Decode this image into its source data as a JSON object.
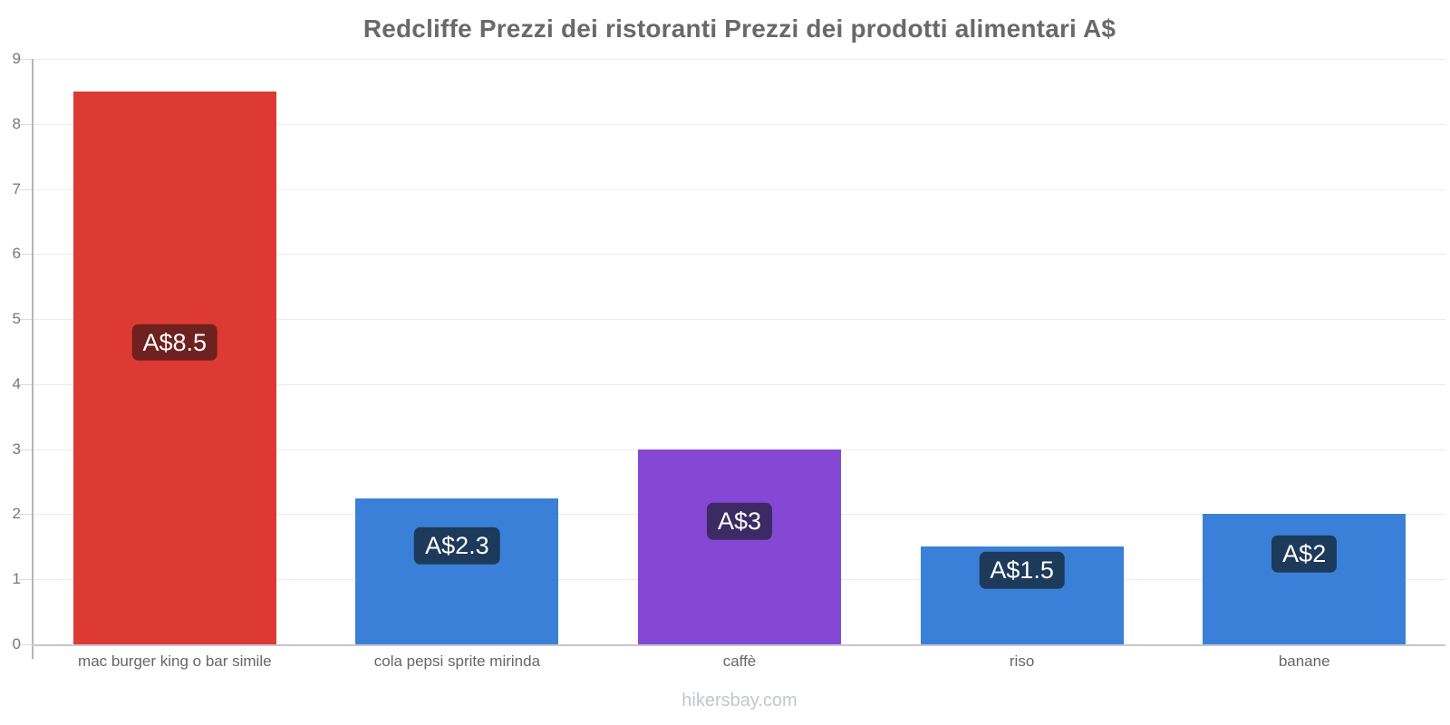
{
  "page": {
    "background": "#ffffff"
  },
  "chart_data": {
    "type": "bar",
    "title": "Redcliffe Prezzi dei ristoranti Prezzi dei prodotti alimentari A$",
    "currency": "A$",
    "categories": [
      "mac burger king o bar simile",
      "cola pepsi sprite mirinda",
      "caffè",
      "riso",
      "banane"
    ],
    "values": [
      8.5,
      2.25,
      3,
      1.5,
      2
    ],
    "value_labels": [
      "A$8.5",
      "A$2.3",
      "A$3",
      "A$1.5",
      "A$2"
    ],
    "bar_colors": [
      "#dc3a32",
      "#3a80d8",
      "#8448d4",
      "#3a80d8",
      "#3a80d8"
    ],
    "badge_colors": [
      "#6e211e",
      "#1d3a5a",
      "#3b2a64",
      "#1d3a5a",
      "#1d3a5a"
    ],
    "badge_text_color": "#ffffff",
    "xlabel": "",
    "ylabel": "",
    "ylim": [
      0,
      9
    ],
    "yticks": [
      0,
      1,
      2,
      3,
      4,
      5,
      6,
      7,
      8,
      9
    ],
    "grid": "horizontal",
    "legend": "none",
    "footer": "hikersbay.com"
  },
  "style_colors": {
    "gridline": "#ececec",
    "axis_line": "#b5b5b5",
    "baseline": "#c7c7cb",
    "title_text": "#696969",
    "tick_text": "#777777",
    "category_text": "#666666",
    "footer_text": "#c2c6ce"
  }
}
